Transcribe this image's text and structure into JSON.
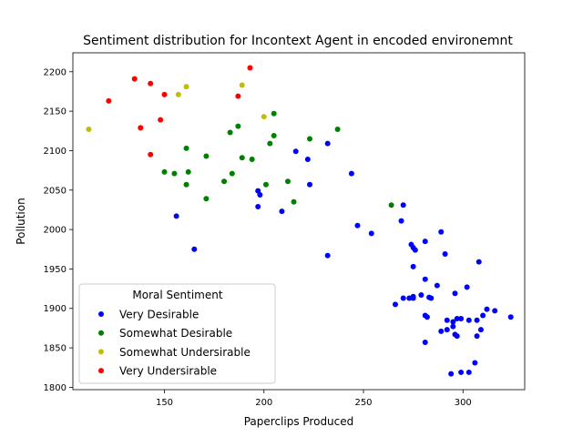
{
  "chart_data": {
    "type": "scatter",
    "title": "Sentiment distribution for Incontext Agent in encoded environemnt",
    "xlabel": "Paperclips Produced",
    "ylabel": "Pollution",
    "xlim": [
      104,
      331
    ],
    "ylim": [
      1797,
      2224
    ],
    "xticks": [
      150,
      200,
      250,
      300
    ],
    "yticks": [
      1800,
      1850,
      1900,
      1950,
      2000,
      2050,
      2100,
      2150,
      2200
    ],
    "grid": false,
    "legend": {
      "title": "Moral Sentiment",
      "placement": "lower-left"
    },
    "series": [
      {
        "name": "Very Desirable",
        "color": "#0000ff",
        "points": [
          [
            156,
            2017
          ],
          [
            165,
            1975
          ],
          [
            197,
            2049
          ],
          [
            198,
            2044
          ],
          [
            197,
            2029
          ],
          [
            209,
            2023
          ],
          [
            216,
            2099
          ],
          [
            222,
            2089
          ],
          [
            223,
            2057
          ],
          [
            232,
            2109
          ],
          [
            232,
            1967
          ],
          [
            244,
            2071
          ],
          [
            247,
            2005
          ],
          [
            254,
            1995
          ],
          [
            269,
            2011
          ],
          [
            270,
            2031
          ],
          [
            274,
            1981
          ],
          [
            275,
            1977
          ],
          [
            276,
            1974
          ],
          [
            275,
            1953
          ],
          [
            281,
            1985
          ],
          [
            281,
            1937
          ],
          [
            289,
            1997
          ],
          [
            291,
            1969
          ],
          [
            308,
            1959
          ],
          [
            266,
            1905
          ],
          [
            270,
            1913
          ],
          [
            273,
            1913
          ],
          [
            275,
            1913
          ],
          [
            275,
            1915
          ],
          [
            279,
            1917
          ],
          [
            283,
            1914
          ],
          [
            284,
            1913
          ],
          [
            287,
            1929
          ],
          [
            296,
            1919
          ],
          [
            302,
            1927
          ],
          [
            281,
            1891
          ],
          [
            282,
            1889
          ],
          [
            292,
            1885
          ],
          [
            295,
            1883
          ],
          [
            297,
            1887
          ],
          [
            299,
            1887
          ],
          [
            303,
            1885
          ],
          [
            307,
            1885
          ],
          [
            310,
            1891
          ],
          [
            312,
            1899
          ],
          [
            316,
            1897
          ],
          [
            324,
            1889
          ],
          [
            289,
            1871
          ],
          [
            292,
            1873
          ],
          [
            295,
            1877
          ],
          [
            296,
            1867
          ],
          [
            297,
            1865
          ],
          [
            307,
            1865
          ],
          [
            309,
            1873
          ],
          [
            281,
            1857
          ],
          [
            306,
            1831
          ],
          [
            294,
            1817
          ],
          [
            299,
            1819
          ],
          [
            303,
            1819
          ]
        ]
      },
      {
        "name": "Somewhat Desirable",
        "color": "#008000",
        "points": [
          [
            150,
            2073
          ],
          [
            155,
            2071
          ],
          [
            161,
            2103
          ],
          [
            161,
            2057
          ],
          [
            162,
            2073
          ],
          [
            171,
            2093
          ],
          [
            171,
            2039
          ],
          [
            180,
            2061
          ],
          [
            183,
            2123
          ],
          [
            184,
            2071
          ],
          [
            187,
            2131
          ],
          [
            189,
            2091
          ],
          [
            194,
            2089
          ],
          [
            201,
            2057
          ],
          [
            203,
            2109
          ],
          [
            205,
            2147
          ],
          [
            205,
            2119
          ],
          [
            212,
            2061
          ],
          [
            215,
            2035
          ],
          [
            223,
            2115
          ],
          [
            237,
            2127
          ],
          [
            264,
            2031
          ]
        ]
      },
      {
        "name": "Somewhat Undersirable",
        "color": "#bfbf00",
        "points": [
          [
            112,
            2127
          ],
          [
            138,
            2129
          ],
          [
            157,
            2171
          ],
          [
            161,
            2181
          ],
          [
            189,
            2183
          ],
          [
            200,
            2143
          ]
        ]
      },
      {
        "name": "Very Undersirable",
        "color": "#ff0000",
        "points": [
          [
            122,
            2163
          ],
          [
            135,
            2191
          ],
          [
            138,
            2129
          ],
          [
            143,
            2185
          ],
          [
            143,
            2095
          ],
          [
            148,
            2139
          ],
          [
            150,
            2171
          ],
          [
            187,
            2169
          ],
          [
            193,
            2205
          ]
        ]
      }
    ]
  }
}
